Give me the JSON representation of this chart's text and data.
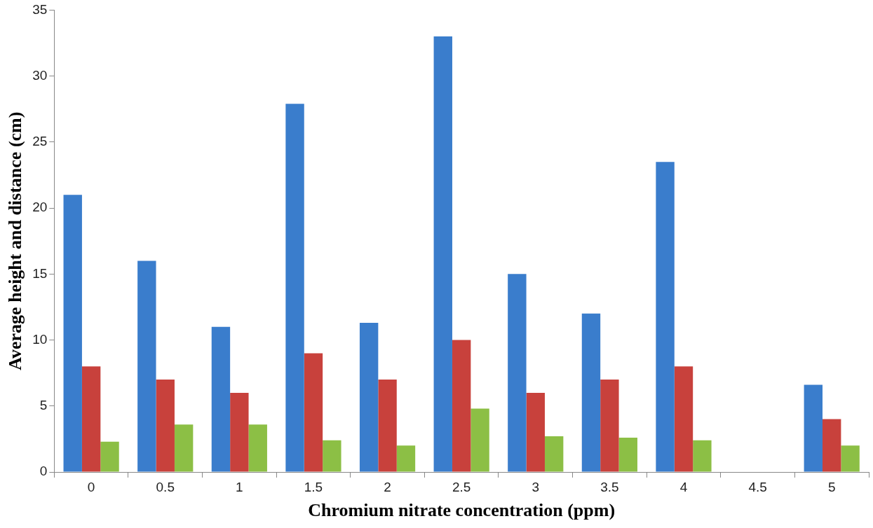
{
  "chart_data": {
    "type": "bar",
    "xlabel": "Chromium nitrate concentration (ppm)",
    "ylabel": "Average height and distance (cm)",
    "categories": [
      "0",
      "0.5",
      "1",
      "1.5",
      "2",
      "2.5",
      "3",
      "3.5",
      "4",
      "4.5",
      "5"
    ],
    "series": [
      {
        "color": "#3a7dcc",
        "values": [
          21,
          16,
          11,
          27.9,
          11.3,
          33,
          15,
          12,
          23.5,
          null,
          6.6
        ]
      },
      {
        "color": "#c8413c",
        "values": [
          8,
          7,
          6,
          9,
          7,
          10,
          6,
          7,
          8,
          null,
          4
        ]
      },
      {
        "color": "#8cbf45",
        "values": [
          2.3,
          3.6,
          3.6,
          2.4,
          2.0,
          4.8,
          2.7,
          2.6,
          2.4,
          null,
          2.0
        ]
      }
    ],
    "ylim": [
      0,
      35
    ],
    "yticks": [
      0,
      5,
      10,
      15,
      20,
      25,
      30,
      35
    ],
    "legend": false
  }
}
